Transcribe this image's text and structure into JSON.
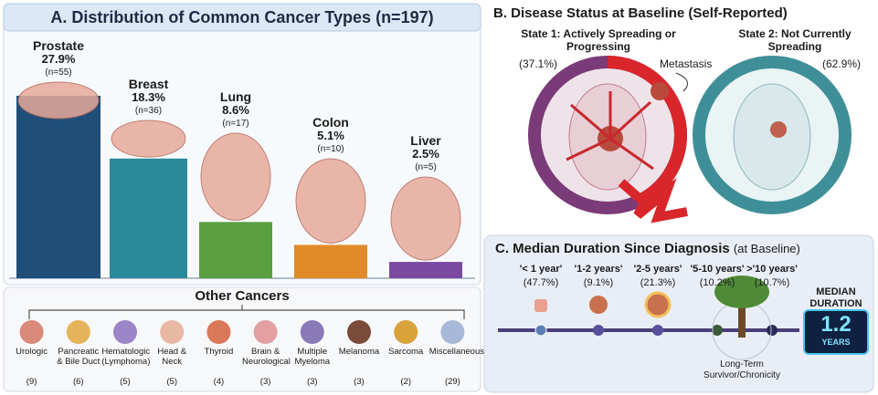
{
  "chart_data": {
    "type": "bar",
    "title": "A. Distribution of Common Cancer Types (n=197)",
    "categories": [
      "Prostate",
      "Breast",
      "Lung",
      "Colon",
      "Liver"
    ],
    "values": [
      27.9,
      18.3,
      8.6,
      5.1,
      2.5
    ],
    "value_labels": [
      "27.9%",
      "18.3%",
      "8.6%",
      "5.1%",
      "2.5%"
    ],
    "count_labels": [
      "(n=55)",
      "(n=36)",
      "(n=17)",
      "(n=10)",
      "(n=5)"
    ],
    "colors": [
      "#1f4e79",
      "#2a8a9a",
      "#5aa040",
      "#e08a2a",
      "#7a4aa0"
    ]
  },
  "other_cancers": {
    "title": "Other Cancers",
    "items": [
      {
        "name": "Urologic",
        "count": "(9)"
      },
      {
        "name": "Pancreatic & Bile Duct",
        "count": "(6)"
      },
      {
        "name": "Hematologic (Lymphoma)",
        "count": "(5)"
      },
      {
        "name": "Head & Neck",
        "count": "(5)"
      },
      {
        "name": "Thyroid",
        "count": "(4)"
      },
      {
        "name": "Brain & Neurological",
        "count": "(3)"
      },
      {
        "name": "Multiple Myeloma",
        "count": "(3)"
      },
      {
        "name": "Melanoma",
        "count": "(3)"
      },
      {
        "name": "Sarcoma",
        "count": "(2)"
      },
      {
        "name": "Miscellaneous",
        "count": "(29)"
      }
    ]
  },
  "panel_b": {
    "title": "B. Disease Status at Baseline (Self-Reported)",
    "state1": {
      "label": "State 1: Actively Spreading or Progressing",
      "percent": "(37.1%)"
    },
    "annotation": "Metastasis",
    "state2": {
      "label": "State 2: Not Currently Spreading",
      "percent": "(62.9%)"
    }
  },
  "panel_c": {
    "title": "C. Median Duration Since Diagnosis",
    "subtitle": "(at Baseline)",
    "durations": [
      {
        "label": "'< 1 year'",
        "percent": "(47.7%)"
      },
      {
        "label": "'1-2 years'",
        "percent": "(9.1%)"
      },
      {
        "label": "'2-5 years'",
        "percent": "(21.3%)"
      },
      {
        "label": "'5-10 years'",
        "percent": "(10.2%)"
      },
      {
        "label": ">'10 years'",
        "percent": "(10.7%)"
      }
    ],
    "median_label": "MEDIAN DURATION",
    "median_value": "1.2",
    "median_unit": "YEARS",
    "milestone": "Long-Term Survivor/Chronicity"
  }
}
